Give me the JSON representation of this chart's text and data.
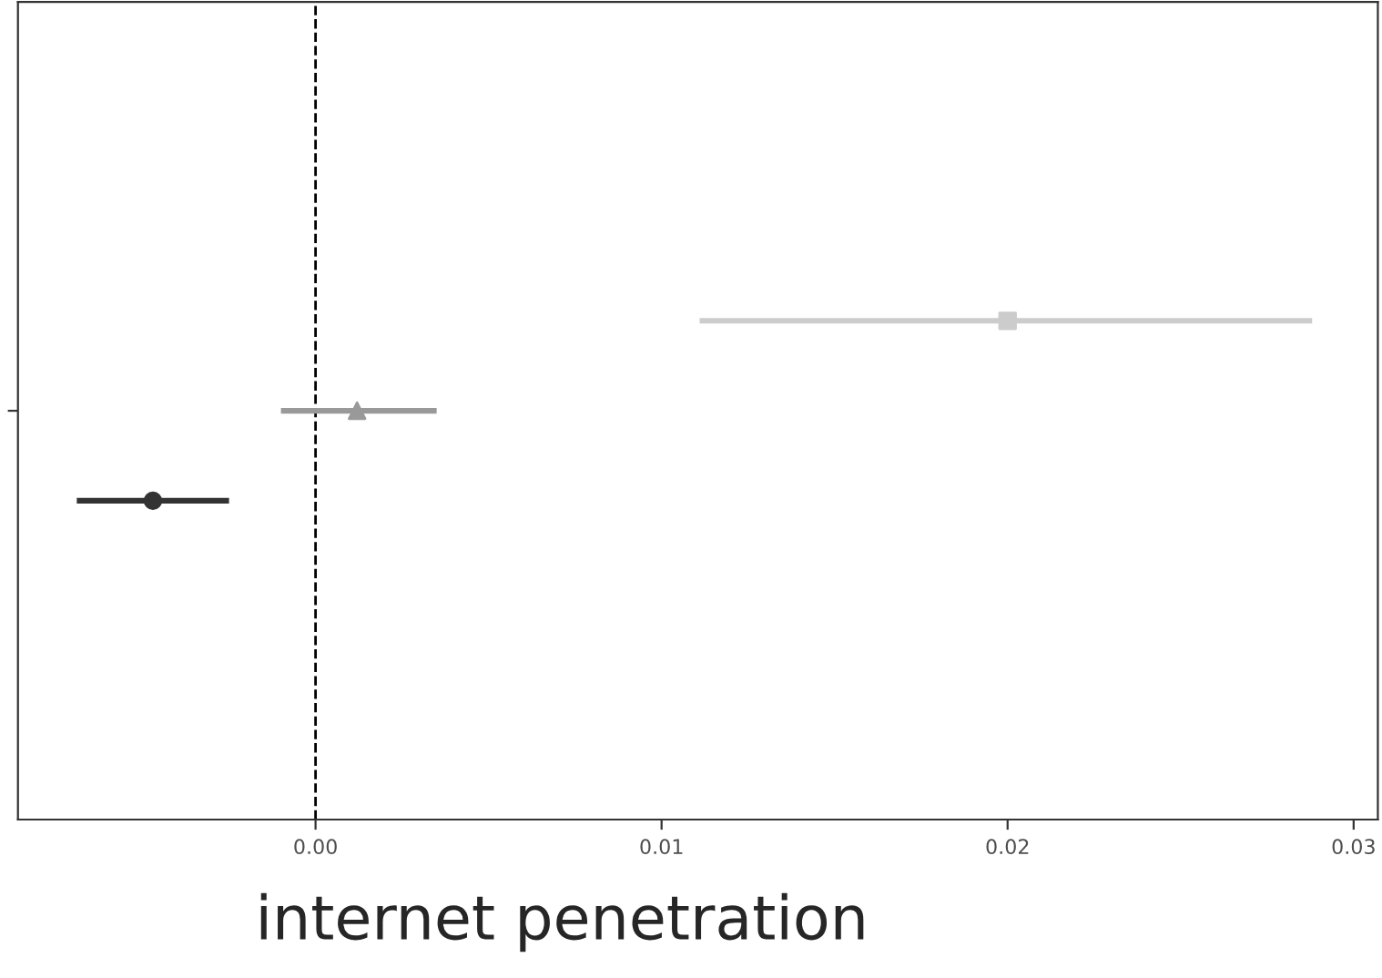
{
  "chart_data": {
    "type": "scatter",
    "orientation": "horizontal",
    "categories": [
      null
    ],
    "xlabel": "internet penetration",
    "xlim": [
      -0.0086,
      0.0307
    ],
    "xticks": [
      {
        "value": 0,
        "label": "0.00"
      },
      {
        "value": 0.01,
        "label": "0.01"
      },
      {
        "value": 0.02,
        "label": "0.02"
      },
      {
        "value": 0.03,
        "label": "0.03"
      }
    ],
    "series": [
      {
        "color": "#cccccc",
        "marker": "square",
        "values": [
          0.02
        ],
        "errors": [
          [
            0.0111,
            0.0288
          ]
        ]
      },
      {
        "color": "#999999",
        "marker": "triangle",
        "values": [
          0.0012
        ],
        "errors": [
          [
            -0.001,
            0.0035
          ]
        ]
      },
      {
        "color": "#333333",
        "marker": "circle",
        "values": [
          -0.0047
        ],
        "errors": [
          [
            -0.0069,
            -0.0025
          ]
        ]
      }
    ],
    "ref_lines": [
      {
        "axis": "x",
        "value": 0,
        "color": "#000000",
        "line_style": "dashed"
      }
    ],
    "grid": false
  }
}
